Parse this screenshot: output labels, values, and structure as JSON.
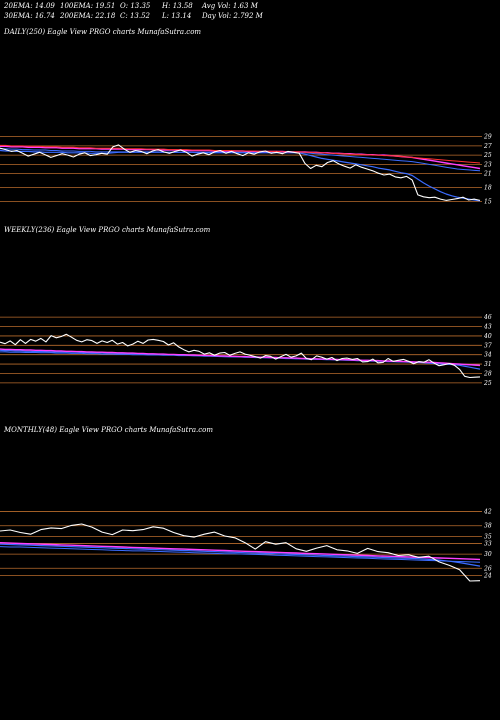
{
  "header": {
    "row1": [
      "20EMA: 14.09",
      "100EMA: 19.51",
      "O: 13.35",
      "H: 13.58",
      "Avg Vol: 1.63 M"
    ],
    "row2": [
      "30EMA: 16.74",
      "200EMA: 22.18",
      "C: 13.52",
      "L: 13.14",
      "Day Vol: 2.792  M"
    ]
  },
  "colors": {
    "background": "#000000",
    "price": "#ffffff",
    "ema_blue": "#3b6cff",
    "ema_magenta": "#ff40ff",
    "ema_red": "#ff3030",
    "level_lines": "#b86b2c"
  },
  "chart_data": [
    {
      "type": "line",
      "title": "DAILY(250) Eagle  View  PRGO charts MunafaSutra.com",
      "y_ticks": [
        "29",
        "27",
        "25",
        "23",
        "21",
        "18",
        "15"
      ],
      "series": [
        {
          "values": [
            26.5,
            26.2,
            25.8,
            26,
            25.4,
            24.8,
            25.2,
            25.6,
            25.1,
            24.5,
            24.9,
            25.3,
            25,
            24.6,
            25.2,
            25.5,
            24.9,
            25.1,
            25.4,
            25.2,
            26.8,
            27.2,
            26.3,
            25.6,
            26,
            25.8,
            25.3,
            25.9,
            26.2,
            25.7,
            25.4,
            25.8,
            26.1,
            25.6,
            24.8,
            25.2,
            25.5,
            25.1,
            25.7,
            26,
            25.4,
            25.8,
            25.3,
            24.9,
            25.5,
            25.2,
            25.7,
            25.9,
            25.4,
            25.6,
            25.3,
            25.8,
            25.6,
            25.4,
            23.2,
            22.1,
            22.8,
            22.5,
            23.4,
            23.8,
            23.1,
            22.6,
            22.2,
            22.9,
            22.4,
            22,
            21.6,
            21.1,
            20.7,
            20.9,
            20.3,
            20.1,
            20.4,
            19.6,
            16.4,
            16,
            15.8,
            15.9,
            15.5,
            15.2,
            15.4,
            15.6,
            15.9,
            15.3,
            15.5,
            15.2
          ]
        },
        {
          "values": [
            26,
            25.9,
            25.9,
            25.8,
            25.8,
            25.8,
            25.7,
            25.7,
            25.6,
            25.6,
            25.6,
            25.6,
            25.5,
            25.5,
            25.5,
            25.5,
            25.4,
            25.4,
            25.4,
            25.4,
            25.5,
            25.6,
            25.6,
            25.6,
            25.6,
            25.6,
            25.6,
            25.6,
            25.6,
            25.6,
            25.6,
            25.6,
            25.6,
            25.6,
            25.6,
            25.5,
            25.5,
            25.5,
            25.5,
            25.5,
            25.5,
            25.5,
            25.5,
            25.5,
            25.5,
            25.5,
            25.5,
            25.5,
            25.5,
            25.5,
            25.5,
            25.5,
            25.5,
            25.5,
            25.2,
            24.9,
            24.6,
            24.3,
            24.1,
            23.9,
            23.7,
            23.5,
            23.3,
            23.1,
            22.9,
            22.7,
            22.5,
            22.2,
            22,
            21.8,
            21.5,
            21.2,
            21,
            20.6,
            19.8,
            19,
            18.3,
            17.7,
            17.1,
            16.6,
            16.2,
            15.9,
            15.7,
            15.5,
            15.3,
            15.1
          ]
        },
        {
          "values": [
            26.4,
            26.4,
            26.3,
            26.3,
            26.2,
            26.2,
            26.1,
            26.1,
            26.1,
            26,
            26,
            25.9,
            25.9,
            25.9,
            25.8,
            25.8,
            25.8,
            25.7,
            25.7,
            25.7,
            25.7,
            25.7,
            25.7,
            25.7,
            25.7,
            25.7,
            25.7,
            25.7,
            25.7,
            25.6,
            25.6,
            25.6,
            25.6,
            25.6,
            25.6,
            25.6,
            25.6,
            25.6,
            25.6,
            25.6,
            25.6,
            25.6,
            25.6,
            25.6,
            25.6,
            25.6,
            25.6,
            25.6,
            25.6,
            25.6,
            25.6,
            25.6,
            25.6,
            25.6,
            25.5,
            25.4,
            25.3,
            25.2,
            25.1,
            25,
            24.9,
            24.8,
            24.7,
            24.6,
            24.5,
            24.4,
            24.3,
            24.2,
            24.1,
            24,
            23.9,
            23.8,
            23.7,
            23.6,
            23.4,
            23.2,
            23,
            22.8,
            22.6,
            22.4,
            22.2,
            22,
            21.9,
            21.8,
            21.7,
            21.6
          ]
        },
        {
          "values": [
            26.9,
            26.9,
            26.8,
            26.8,
            26.8,
            26.7,
            26.7,
            26.7,
            26.6,
            26.6,
            26.6,
            26.5,
            26.5,
            26.5,
            26.4,
            26.4,
            26.4,
            26.4,
            26.3,
            26.3,
            26.3,
            26.3,
            26.3,
            26.2,
            26.2,
            26.2,
            26.2,
            26.2,
            26.1,
            26.1,
            26.1,
            26.1,
            26.1,
            26,
            26,
            26,
            26,
            26,
            25.9,
            25.9,
            25.9,
            25.9,
            25.9,
            25.9,
            25.8,
            25.8,
            25.8,
            25.8,
            25.8,
            25.8,
            25.8,
            25.7,
            25.7,
            25.7,
            25.7,
            25.6,
            25.6,
            25.5,
            25.5,
            25.4,
            25.4,
            25.3,
            25.3,
            25.2,
            25.2,
            25.1,
            25.1,
            25,
            25,
            24.9,
            24.8,
            24.7,
            24.6,
            24.5,
            24.3,
            24.1,
            23.9,
            23.7,
            23.5,
            23.3,
            23.1,
            22.9,
            22.7,
            22.5,
            22.3,
            22.1
          ]
        },
        {
          "values": [
            27.1,
            27.1,
            27,
            27,
            27,
            26.9,
            26.9,
            26.9,
            26.8,
            26.8,
            26.8,
            26.7,
            26.7,
            26.7,
            26.6,
            26.6,
            26.6,
            26.5,
            26.5,
            26.5,
            26.5,
            26.5,
            26.4,
            26.4,
            26.4,
            26.4,
            26.3,
            26.3,
            26.3,
            26.3,
            26.2,
            26.2,
            26.2,
            26.2,
            26.1,
            26.1,
            26.1,
            26.1,
            26,
            26,
            26,
            26,
            25.9,
            25.9,
            25.9,
            25.9,
            25.8,
            25.8,
            25.8,
            25.8,
            25.7,
            25.7,
            25.7,
            25.7,
            25.6,
            25.6,
            25.5,
            25.5,
            25.4,
            25.4,
            25.3,
            25.3,
            25.2,
            25.2,
            25.1,
            25.1,
            25,
            25,
            24.9,
            24.9,
            24.8,
            24.7,
            24.6,
            24.5,
            24.4,
            24.3,
            24.2,
            24.1,
            24,
            23.9,
            23.8,
            23.7,
            23.6,
            23.5,
            23.4,
            23.3
          ]
        }
      ],
      "ylim": [
        14,
        30
      ]
    },
    {
      "type": "line",
      "title": "WEEKLY(236) Eagle  View  PRGO charts MunafaSutra.com",
      "y_ticks": [
        "46",
        "43",
        "40",
        "37",
        "34",
        "31",
        "28",
        "25"
      ],
      "series": [
        {
          "values": [
            38,
            37.5,
            38.4,
            37.2,
            38.8,
            37.6,
            38.9,
            38.3,
            39.2,
            38.1,
            40.1,
            39.4,
            39.8,
            40.5,
            39.6,
            38.6,
            38.1,
            38.8,
            38.5,
            37.6,
            38.4,
            37.9,
            38.6,
            37.4,
            37.9,
            36.8,
            37.4,
            38.3,
            37.6,
            38.7,
            38.9,
            38.6,
            38.2,
            37.1,
            37.8,
            36.5,
            35.6,
            34.9,
            35.4,
            35.1,
            34.2,
            34.6,
            33.8,
            34.5,
            34.7,
            33.8,
            34.4,
            34.9,
            34.2,
            33.8,
            33.4,
            32.9,
            33.7,
            33.5,
            32.6,
            33.4,
            34.1,
            33.2,
            33.6,
            34.5,
            32.8,
            32.4,
            33.6,
            33.2,
            32.6,
            33.1,
            32.1,
            32.8,
            32.9,
            32.5,
            32.8,
            31.7,
            31.8,
            32.6,
            31.4,
            31.5,
            32.8,
            31.9,
            32.2,
            32.5,
            31.9,
            31.1,
            31.8,
            31.6,
            32.4,
            31.3,
            30.5,
            30.8,
            31.2,
            30.6,
            29.3,
            27.1,
            26.7,
            26.8,
            26.9
          ]
        },
        {
          "values": [
            35.4,
            35.3,
            35.3,
            35.2,
            35.2,
            35.1,
            35.1,
            35,
            35,
            35,
            34.9,
            34.9,
            34.9,
            34.8,
            34.8,
            34.8,
            34.7,
            34.7,
            34.6,
            34.6,
            34.6,
            34.5,
            34.5,
            34.4,
            34.4,
            34.4,
            34.3,
            34.3,
            34.2,
            34.2,
            34.2,
            34.1,
            34.1,
            34,
            34,
            33.9,
            33.9,
            33.8,
            33.8,
            33.7,
            33.7,
            33.6,
            33.5,
            33.5,
            33.4,
            33.4,
            33.3,
            33.3,
            33.2,
            33.2,
            33.1,
            33.1,
            33,
            33,
            32.9,
            32.9,
            32.8,
            32.8,
            32.7,
            32.7,
            32.6,
            32.6,
            32.5,
            32.5,
            32.4,
            32.4,
            32.3,
            32.3,
            32.2,
            32.2,
            32.1,
            32.1,
            32,
            32,
            31.9,
            31.9,
            31.8,
            31.8,
            31.7,
            31.7,
            31.6,
            31.5,
            31.5,
            31.4,
            31.3,
            31.2,
            31.1,
            31,
            30.9,
            30.8,
            30.6,
            30.3,
            30,
            29.7,
            29.4
          ]
        },
        {
          "values": [
            34.9,
            34.9,
            34.8,
            34.8,
            34.8,
            34.7,
            34.7,
            34.7,
            34.6,
            34.6,
            34.6,
            34.5,
            34.5,
            34.5,
            34.4,
            34.4,
            34.4,
            34.3,
            34.3,
            34.3,
            34.2,
            34.2,
            34.2,
            34.1,
            34.1,
            34.1,
            34,
            34,
            34,
            33.9,
            33.9,
            33.9,
            33.8,
            33.8,
            33.8,
            33.7,
            33.7,
            33.7,
            33.6,
            33.6,
            33.5,
            33.5,
            33.5,
            33.4,
            33.4,
            33.3,
            33.3,
            33.3,
            33.2,
            33.2,
            33.1,
            33.1,
            33.1,
            33,
            33,
            32.9,
            32.9,
            32.9,
            32.8,
            32.8,
            32.7,
            32.7,
            32.6,
            32.6,
            32.6,
            32.5,
            32.5,
            32.4,
            32.4,
            32.3,
            32.3,
            32.2,
            32.2,
            32.1,
            32.1,
            32,
            32,
            31.9,
            31.9,
            31.8,
            31.8,
            31.7,
            31.6,
            31.6,
            31.5,
            31.4,
            31.3,
            31.2,
            31.1,
            31,
            30.9,
            30.8,
            30.7,
            30.6,
            30.5
          ]
        },
        {
          "values": [
            35.8,
            35.7,
            35.7,
            35.6,
            35.6,
            35.5,
            35.5,
            35.4,
            35.4,
            35.3,
            35.3,
            35.2,
            35.2,
            35.1,
            35.1,
            35,
            35,
            34.9,
            34.9,
            34.8,
            34.8,
            34.7,
            34.7,
            34.6,
            34.6,
            34.5,
            34.5,
            34.4,
            34.4,
            34.3,
            34.3,
            34.2,
            34.2,
            34.1,
            34.1,
            34,
            34,
            33.9,
            33.9,
            33.8,
            33.8,
            33.7,
            33.7,
            33.6,
            33.6,
            33.5,
            33.5,
            33.4,
            33.4,
            33.3,
            33.3,
            33.2,
            33.2,
            33.1,
            33.1,
            33,
            33,
            32.9,
            32.9,
            32.8,
            32.8,
            32.7,
            32.7,
            32.6,
            32.6,
            32.5,
            32.5,
            32.4,
            32.4,
            32.3,
            32.3,
            32.2,
            32.2,
            32.1,
            32.1,
            32,
            32,
            31.9,
            31.9,
            31.8,
            31.8,
            31.7,
            31.7,
            31.6,
            31.6,
            31.5,
            31.4,
            31.3,
            31.2,
            31.1,
            31,
            30.9,
            30.8,
            30.7,
            30.6
          ]
        }
      ],
      "ylim": [
        24,
        47
      ]
    },
    {
      "type": "line",
      "title": "MONTHLY(48) Eagle  View  PRGO charts MunafaSutra.com",
      "y_ticks": [
        "42",
        "38",
        "35",
        "33",
        "30",
        "26",
        "24"
      ],
      "series": [
        {
          "values": [
            36.5,
            36.8,
            36.1,
            35.6,
            36.9,
            37.4,
            37.2,
            38.1,
            38.5,
            37.6,
            36.2,
            35.5,
            36.8,
            36.6,
            36.9,
            37.7,
            37.3,
            36.1,
            35.2,
            34.8,
            35.6,
            36.2,
            35.1,
            34.6,
            33.2,
            31.4,
            33.5,
            32.8,
            33.2,
            31.5,
            30.8,
            31.7,
            32.4,
            31.2,
            30.9,
            30.2,
            31.6,
            30.7,
            30.4,
            29.6,
            29.8,
            29.1,
            29.4,
            27.8,
            26.8,
            25.6,
            22.4,
            22.5
          ]
        },
        {
          "values": [
            32.8,
            32.7,
            32.6,
            32.5,
            32.4,
            32.3,
            32.2,
            32.1,
            32,
            31.9,
            31.8,
            31.7,
            31.6,
            31.5,
            31.4,
            31.3,
            31.2,
            31.1,
            31,
            30.9,
            30.8,
            30.7,
            30.6,
            30.5,
            30.4,
            30.3,
            30.2,
            30.1,
            30,
            29.9,
            29.8,
            29.7,
            29.6,
            29.5,
            29.4,
            29.3,
            29.2,
            29.1,
            29,
            28.9,
            28.8,
            28.7,
            28.5,
            28.3,
            28,
            27.6,
            27.1,
            26.6
          ]
        },
        {
          "values": [
            32.1,
            32,
            32,
            31.9,
            31.8,
            31.7,
            31.6,
            31.5,
            31.4,
            31.3,
            31.2,
            31.1,
            31,
            30.9,
            30.9,
            30.8,
            30.7,
            30.6,
            30.5,
            30.4,
            30.3,
            30.2,
            30.1,
            30.1,
            30,
            29.9,
            29.8,
            29.7,
            29.6,
            29.5,
            29.4,
            29.3,
            29.2,
            29.1,
            29,
            28.9,
            28.8,
            28.7,
            28.6,
            28.5,
            28.4,
            28.3,
            28.2,
            28.1,
            28,
            27.9,
            27.8,
            27.7
          ]
        },
        {
          "values": [
            33.2,
            33.1,
            33,
            32.9,
            32.8,
            32.7,
            32.6,
            32.5,
            32.4,
            32.3,
            32.2,
            32.1,
            32,
            31.9,
            31.8,
            31.7,
            31.6,
            31.5,
            31.4,
            31.3,
            31.2,
            31.1,
            31,
            30.9,
            30.8,
            30.7,
            30.6,
            30.5,
            30.4,
            30.3,
            30.2,
            30.1,
            30,
            29.9,
            29.8,
            29.7,
            29.6,
            29.5,
            29.4,
            29.3,
            29.2,
            29.1,
            29,
            28.9,
            28.8,
            28.7,
            28.6,
            28.5
          ]
        }
      ],
      "ylim": [
        21,
        43
      ]
    }
  ]
}
